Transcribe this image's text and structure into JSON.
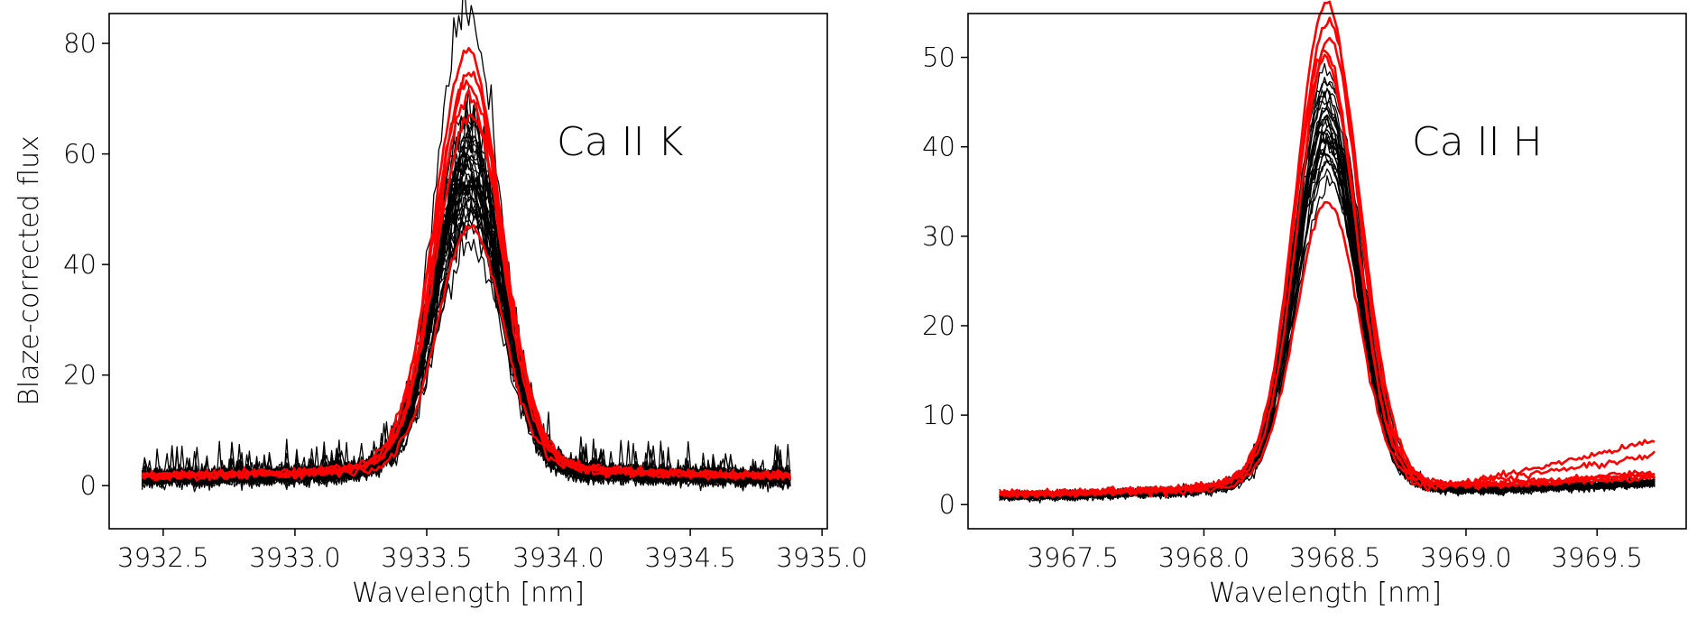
{
  "chart_data": [
    {
      "type": "line",
      "title": "",
      "annotation": "Ca II K",
      "xlabel": "Wavelength [nm]",
      "ylabel": "Blaze-corrected flux",
      "xlim": [
        3932.295,
        3935.02
      ],
      "ylim": [
        -7.8,
        85.4
      ],
      "xticks": [
        3932.5,
        3933.0,
        3933.5,
        3934.0,
        3934.5,
        3935.0
      ],
      "xtick_labels": [
        "3932.5",
        "3933.0",
        "3933.5",
        "3934.0",
        "3934.5",
        "3935.0"
      ],
      "yticks": [
        0,
        20,
        40,
        60,
        80
      ],
      "ytick_labels": [
        "0",
        "20",
        "40",
        "60",
        "80"
      ],
      "x_range": [
        3932.42,
        3934.88
      ],
      "line_center": 3933.66,
      "line_sigma": 0.125,
      "grid": false,
      "series_groups": [
        {
          "name": "black",
          "color": "#000000",
          "baseline": 1.2,
          "noise": 1.1,
          "peaks": [
            40,
            42,
            44,
            45,
            46,
            47,
            48,
            48,
            49,
            50,
            50,
            51,
            51,
            52,
            52,
            53,
            53,
            54,
            54,
            55,
            55,
            56,
            56,
            57,
            57,
            58,
            59,
            60,
            61,
            62,
            63,
            58,
            50,
            47,
            45,
            80
          ]
        },
        {
          "name": "red",
          "color": "#ff0000",
          "baseline": 1.5,
          "noise": 0.5,
          "peaks": [
            43,
            62,
            65,
            67,
            69,
            73
          ]
        }
      ]
    },
    {
      "type": "line",
      "title": "",
      "annotation": "Ca II H",
      "xlabel": "Wavelength [nm]",
      "ylabel": "",
      "xlim": [
        3967.1,
        3969.84
      ],
      "ylim": [
        -2.7,
        54.9
      ],
      "xticks": [
        3967.5,
        3968.0,
        3968.5,
        3969.0,
        3969.5
      ],
      "xtick_labels": [
        "3967.5",
        "3968.0",
        "3968.5",
        "3969.0",
        "3969.5"
      ],
      "yticks": [
        0,
        10,
        20,
        30,
        40,
        50
      ],
      "ytick_labels": [
        "0",
        "10",
        "20",
        "30",
        "40",
        "50"
      ],
      "x_range": [
        3967.22,
        3969.72
      ],
      "line_center": 3968.47,
      "line_sigma": 0.12,
      "grid": false,
      "series_groups": [
        {
          "name": "black",
          "color": "#000000",
          "baseline": 0.8,
          "tail_end": 2.3,
          "noise": 0.35,
          "peaks": [
            33,
            34,
            35,
            35,
            36,
            36,
            37,
            37,
            38,
            38,
            38,
            39,
            39,
            40,
            40,
            40,
            41,
            41,
            42,
            42,
            43,
            43,
            44,
            44,
            45,
            36,
            37,
            39,
            41,
            38
          ]
        },
        {
          "name": "red",
          "color": "#ff0000",
          "baseline": 1.0,
          "noise": 0.25,
          "peaks": [
            31,
            46,
            47,
            48,
            50,
            52
          ],
          "tail_end": [
            7.0,
            5.3,
            3.5,
            3.2,
            3.0,
            2.8
          ]
        }
      ]
    }
  ]
}
